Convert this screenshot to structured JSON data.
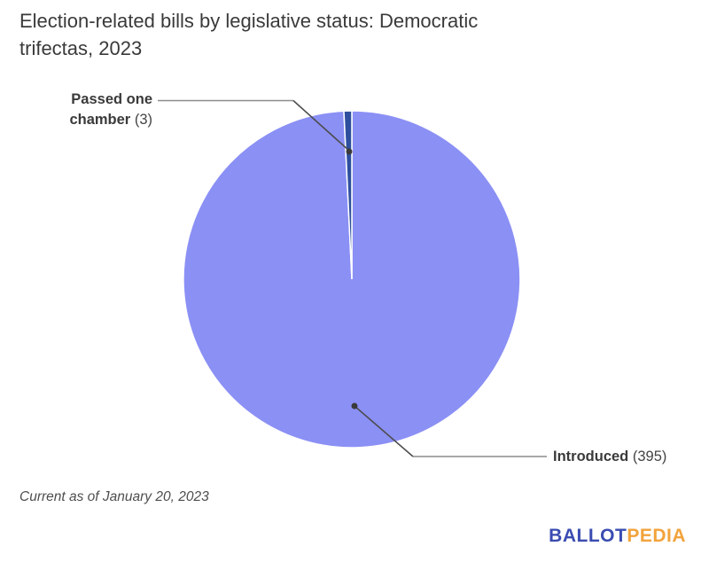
{
  "header": {
    "title_line1": "Election-related bills by legislative status: Democratic",
    "title_line2": "trifectas, 2023"
  },
  "chart_data": {
    "type": "pie",
    "title": "Election-related bills by legislative status: Democratic trifectas, 2023",
    "slices": [
      {
        "label": "Introduced",
        "value": 395,
        "color": "#8b90f5"
      },
      {
        "label": "Passed one chamber",
        "value": 3,
        "color": "#2e4f9e"
      }
    ],
    "total": 398,
    "start_angle_deg": 0,
    "direction": "clockwise",
    "slice_border_color": "#ffffff",
    "legend_position": "labeled-callouts"
  },
  "annotations": {
    "passed": {
      "line1": "Passed one",
      "line2_name": "chamber",
      "count": "(3)"
    },
    "introduced": {
      "name": "Introduced",
      "count": "(395)"
    }
  },
  "footer": {
    "note": "Current as of January 20, 2023",
    "logo": {
      "part1": "BALLOT",
      "part2": "PEDIA",
      "part1_color": "#3a4cb1",
      "part2_color": "#f2a33c"
    }
  }
}
